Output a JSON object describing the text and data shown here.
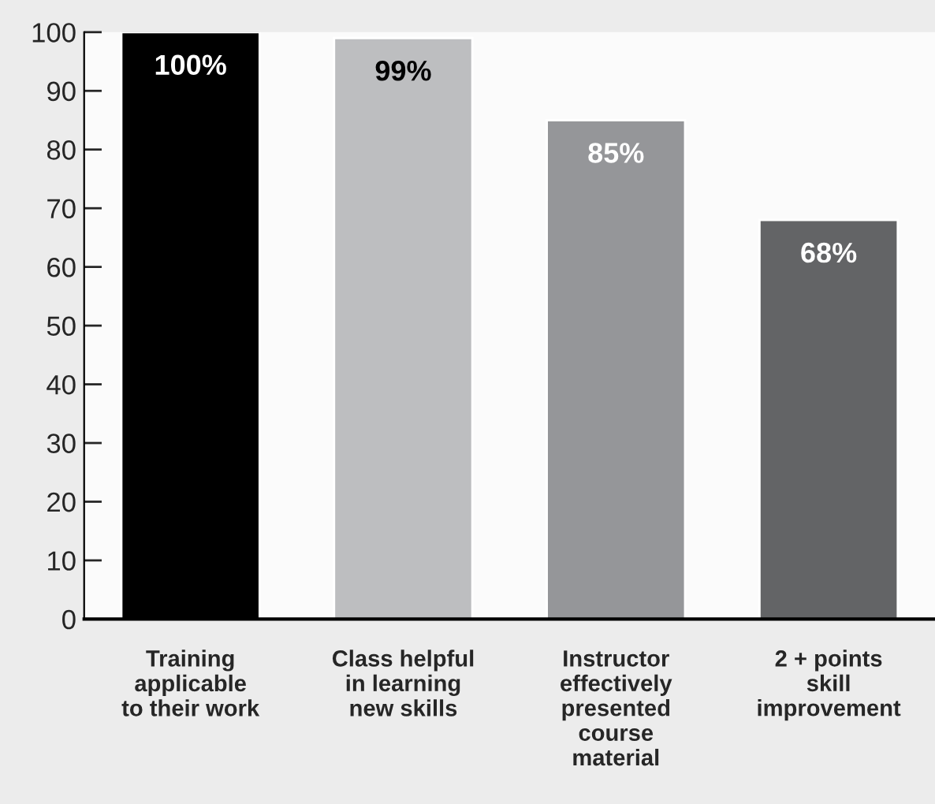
{
  "chart_data": {
    "type": "bar",
    "categories": [
      "Training\napplicable\nto their work",
      "Class helpful\nin learning\nnew skills",
      "Instructor\neffectively\npresented\ncourse\nmaterial",
      "2 + points\nskill\nimprovement"
    ],
    "values": [
      100,
      99,
      85,
      68
    ],
    "colors": [
      "#000000",
      "#bdbec0",
      "#959699",
      "#636466"
    ],
    "value_labels": [
      "100%",
      "99%",
      "85%",
      "68%"
    ],
    "ylim": [
      0,
      100
    ],
    "yticks": [
      0,
      10,
      20,
      30,
      40,
      50,
      60,
      70,
      80,
      90,
      100
    ],
    "grid": false,
    "legend": false
  }
}
